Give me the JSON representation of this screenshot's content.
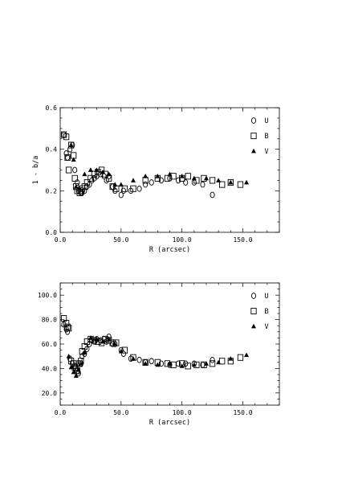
{
  "chart_data": [
    {
      "type": "scatter",
      "xlabel": "R (arcsec)",
      "ylabel": "1 - b/a",
      "xlim": [
        0,
        180
      ],
      "ylim": [
        0,
        0.6
      ],
      "xticks": [
        "0.0",
        "50.0",
        "100.0",
        "150.0"
      ],
      "yticks": [
        "0.0",
        "0.2",
        "0.4",
        "0.6"
      ],
      "legend_position": "top-right",
      "series": [
        {
          "name": "U",
          "marker": "circle",
          "x": [
            3,
            5,
            6,
            8,
            10,
            12,
            14,
            15,
            17,
            18,
            20,
            22,
            24,
            26,
            28,
            30,
            33,
            36,
            38,
            40,
            43,
            45,
            50,
            52,
            58,
            65,
            70,
            75,
            83,
            90,
            97,
            103,
            110,
            117,
            125
          ],
          "y": [
            0.47,
            0.38,
            0.36,
            0.4,
            0.42,
            0.3,
            0.24,
            0.2,
            0.19,
            0.19,
            0.2,
            0.22,
            0.23,
            0.25,
            0.26,
            0.27,
            0.28,
            0.27,
            0.25,
            0.27,
            0.22,
            0.2,
            0.18,
            0.2,
            0.2,
            0.21,
            0.23,
            0.24,
            0.25,
            0.26,
            0.25,
            0.24,
            0.24,
            0.23,
            0.18
          ]
        },
        {
          "name": "B",
          "marker": "square",
          "x": [
            3,
            5,
            6,
            7,
            9,
            11,
            12,
            13,
            14,
            16,
            17,
            18,
            20,
            22,
            25,
            28,
            31,
            34,
            37,
            40,
            43,
            46,
            53,
            60,
            70,
            80,
            88,
            93,
            100,
            105,
            112,
            118,
            125,
            133,
            140,
            148
          ],
          "y": [
            0.47,
            0.46,
            0.36,
            0.3,
            0.42,
            0.37,
            0.26,
            0.22,
            0.2,
            0.19,
            0.2,
            0.21,
            0.22,
            0.24,
            0.26,
            0.28,
            0.29,
            0.3,
            0.28,
            0.26,
            0.22,
            0.21,
            0.21,
            0.21,
            0.25,
            0.26,
            0.26,
            0.27,
            0.26,
            0.27,
            0.25,
            0.26,
            0.25,
            0.23,
            0.24,
            0.23
          ]
        },
        {
          "name": "V",
          "marker": "triangle",
          "x": [
            9,
            11,
            13,
            16,
            20,
            25,
            30,
            35,
            40,
            45,
            50,
            60,
            70,
            80,
            90,
            100,
            110,
            120,
            130,
            140,
            153
          ],
          "y": [
            0.42,
            0.35,
            0.22,
            0.21,
            0.28,
            0.3,
            0.3,
            0.29,
            0.28,
            0.23,
            0.23,
            0.25,
            0.27,
            0.27,
            0.28,
            0.27,
            0.26,
            0.26,
            0.25,
            0.24,
            0.24
          ]
        }
      ]
    },
    {
      "type": "scatter",
      "xlabel": "R (arcsec)",
      "ylabel": "",
      "xlim": [
        0,
        180
      ],
      "ylim": [
        10,
        110
      ],
      "xticks": [
        "0.0",
        "50.0",
        "100.0",
        "150.0"
      ],
      "yticks": [
        "20.0",
        "40.0",
        "60.0",
        "80.0",
        "100.0"
      ],
      "legend_position": "top-right",
      "series": [
        {
          "name": "U",
          "marker": "circle",
          "x": [
            3,
            5,
            6,
            8,
            10,
            12,
            14,
            15,
            17,
            18,
            20,
            22,
            24,
            26,
            28,
            30,
            33,
            36,
            38,
            40,
            43,
            45,
            50,
            52,
            58,
            65,
            70,
            75,
            83,
            90,
            97,
            103,
            110,
            117,
            125
          ],
          "y": [
            76,
            72,
            70,
            48,
            44,
            42,
            38,
            36,
            44,
            50,
            52,
            56,
            60,
            63,
            62,
            64,
            63,
            64,
            62,
            66,
            60,
            60,
            55,
            52,
            48,
            47,
            45,
            46,
            44,
            43,
            44,
            44,
            44,
            43,
            47
          ]
        },
        {
          "name": "B",
          "marker": "square",
          "x": [
            3,
            5,
            6,
            7,
            9,
            11,
            12,
            13,
            14,
            16,
            17,
            18,
            20,
            22,
            25,
            28,
            31,
            34,
            37,
            40,
            43,
            46,
            53,
            60,
            70,
            80,
            88,
            93,
            100,
            105,
            112,
            118,
            125,
            133,
            140,
            148
          ],
          "y": [
            81,
            77,
            74,
            73,
            46,
            44,
            41,
            40,
            38,
            44,
            46,
            54,
            58,
            62,
            64,
            63,
            62,
            61,
            64,
            63,
            61,
            61,
            55,
            49,
            45,
            45,
            44,
            43,
            44,
            42,
            43,
            43,
            44,
            46,
            46,
            49
          ]
        },
        {
          "name": "V",
          "marker": "triangle",
          "x": [
            7,
            9,
            11,
            13,
            15,
            17,
            20,
            25,
            30,
            35,
            40,
            45,
            50,
            60,
            70,
            80,
            90,
            100,
            110,
            120,
            130,
            140,
            153
          ],
          "y": [
            50,
            41,
            37,
            34,
            39,
            44,
            53,
            65,
            64,
            62,
            64,
            60,
            54,
            48,
            44,
            43,
            44,
            42,
            43,
            44,
            45,
            48,
            51
          ]
        }
      ]
    }
  ]
}
